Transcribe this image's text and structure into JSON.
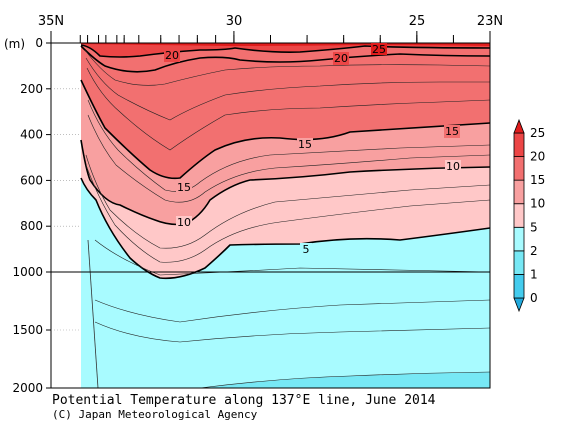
{
  "chart_data": {
    "type": "heatmap",
    "title": "Potential Temperature along 137°E line, June 2014",
    "credit": "(C) Japan Meteorological Agency",
    "y_unit": "(m)",
    "x_tick_labels": [
      "35N",
      "30",
      "25",
      "23N"
    ],
    "x_ticks_lat": [
      35,
      30,
      25,
      23
    ],
    "xlim": [
      35,
      23
    ],
    "y_upper_ticks": [
      0,
      200,
      400,
      600,
      800,
      1000
    ],
    "y_lower_ticks": [
      1500,
      2000
    ],
    "ylim": [
      0,
      2000
    ],
    "y_axis_break": 1000,
    "station_latitudes": [
      34.2,
      34.0,
      33.7,
      33.5,
      33.2,
      33.0,
      32.6,
      32.0,
      31.5,
      31.0,
      30.5,
      30.0,
      29.0,
      28.0,
      27.0,
      26.0,
      25.0,
      24.0,
      23.0
    ],
    "contour_labels": [
      "20",
      "20",
      "25",
      "15",
      "15",
      "15",
      "10",
      "10",
      "5"
    ],
    "colorbar": {
      "labels": [
        "25",
        "20",
        "15",
        "10",
        "5",
        "2",
        "1",
        "0"
      ],
      "levels": [
        0,
        1,
        2,
        5,
        10,
        15,
        20,
        25
      ],
      "colors": [
        "#22aadd",
        "#44ccee",
        "#77e8f5",
        "#a8fbff",
        "#ffc8c8",
        "#f8a0a0",
        "#f27070",
        "#ec4646",
        "#e01c1c"
      ]
    },
    "isotherm_depths": {
      "25": [
        [
          35.2,
          5
        ],
        [
          34,
          8
        ],
        [
          32,
          12
        ],
        [
          31,
          18
        ],
        [
          30,
          20
        ],
        [
          29,
          12
        ],
        [
          28,
          15
        ],
        [
          27,
          20
        ],
        [
          26,
          10
        ],
        [
          25,
          15
        ],
        [
          24,
          12
        ],
        [
          23,
          15
        ]
      ],
      "20": [
        [
          35.2,
          10
        ],
        [
          34.5,
          50
        ],
        [
          34,
          75
        ],
        [
          33,
          65
        ],
        [
          32.3,
          45
        ],
        [
          31.6,
          30
        ],
        [
          30.5,
          30
        ],
        [
          30,
          15
        ],
        [
          29,
          45
        ],
        [
          28,
          40
        ],
        [
          27,
          30
        ],
        [
          26,
          10
        ],
        [
          25,
          25
        ],
        [
          24,
          30
        ],
        [
          23,
          30
        ]
      ],
      "15": [
        [
          35.2,
          220
        ],
        [
          34.5,
          450
        ],
        [
          34,
          560
        ],
        [
          33.5,
          660
        ],
        [
          33.2,
          770
        ],
        [
          32.8,
          780
        ],
        [
          32.3,
          680
        ],
        [
          32,
          600
        ],
        [
          31.5,
          550
        ],
        [
          31,
          480
        ],
        [
          30,
          540
        ],
        [
          29,
          450
        ],
        [
          28,
          400
        ],
        [
          27,
          420
        ],
        [
          26,
          380
        ],
        [
          25,
          360
        ],
        [
          24,
          360
        ],
        [
          23,
          340
        ]
      ],
      "10": [
        [
          35.2,
          560
        ],
        [
          35,
          690
        ],
        [
          34.5,
          790
        ],
        [
          34,
          880
        ],
        [
          33.6,
          950
        ],
        [
          33.3,
          985
        ],
        [
          32.8,
          975
        ],
        [
          32.5,
          925
        ],
        [
          32,
          830
        ],
        [
          31.5,
          750
        ],
        [
          30.5,
          770
        ],
        [
          29.5,
          650
        ],
        [
          28,
          620
        ],
        [
          26,
          600
        ],
        [
          25,
          580
        ],
        [
          24,
          560
        ],
        [
          23,
          550
        ]
      ],
      "5": [
        [
          35.2,
          960
        ],
        [
          35,
          1040
        ],
        [
          34.4,
          1700
        ],
        [
          34.3,
          1990
        ]
      ],
      "2": [
        [
          30,
          2000
        ],
        [
          28,
          1930
        ],
        [
          26,
          1900
        ],
        [
          23,
          1870
        ]
      ]
    }
  }
}
